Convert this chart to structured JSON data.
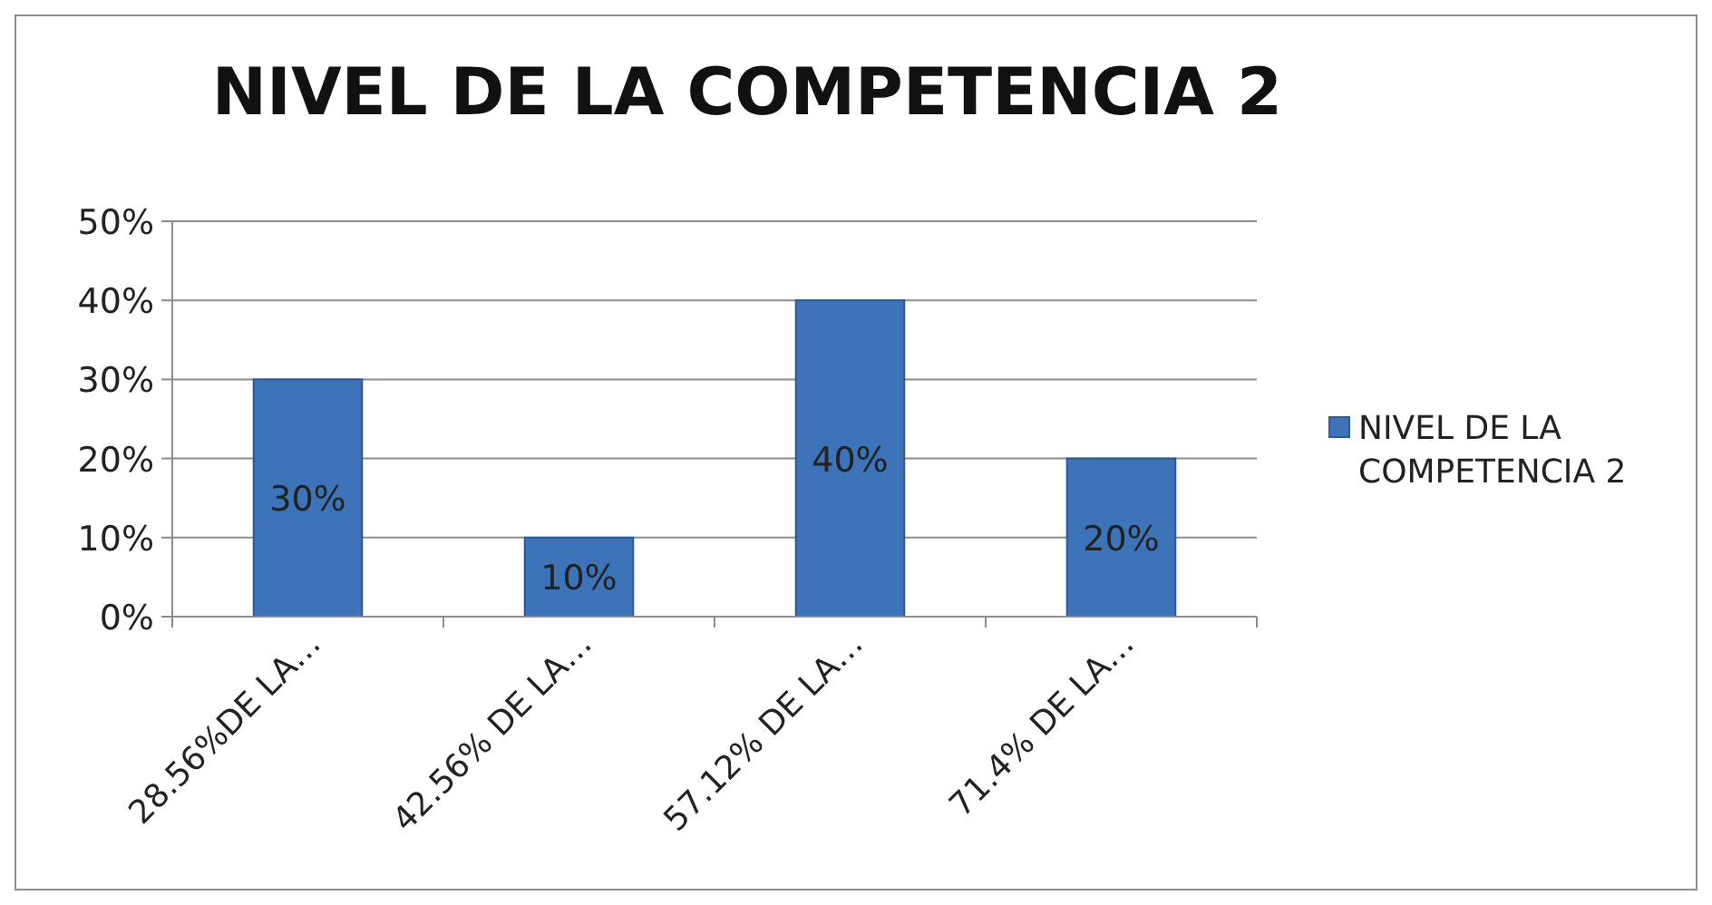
{
  "chart_data": {
    "type": "bar",
    "title": "NIVEL DE LA COMPETENCIA 2",
    "categories": [
      "28.56%DE LA…",
      "42.56% DE LA…",
      "57.12% DE LA…",
      "71.4% DE LA…"
    ],
    "series": [
      {
        "name": "NIVEL DE LA COMPETENCIA 2",
        "color": "#3d74b9",
        "values": [
          30,
          10,
          40,
          20
        ],
        "value_labels": [
          "30%",
          "10%",
          "40%",
          "20%"
        ]
      }
    ],
    "ylim": [
      0,
      50
    ],
    "yticks": [
      {
        "value": 0,
        "label": "0%"
      },
      {
        "value": 10,
        "label": "10%"
      },
      {
        "value": 20,
        "label": "20%"
      },
      {
        "value": 30,
        "label": "30%"
      },
      {
        "value": 40,
        "label": "40%"
      },
      {
        "value": 50,
        "label": "50%"
      }
    ],
    "grid": "y",
    "legend": "right"
  }
}
